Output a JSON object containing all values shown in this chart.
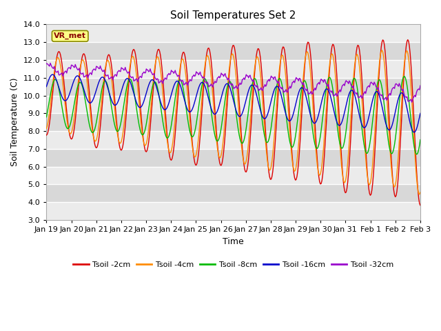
{
  "title": "Soil Temperatures Set 2",
  "xlabel": "Time",
  "ylabel": "Soil Temperature (C)",
  "ylim": [
    3.0,
    14.0
  ],
  "yticks": [
    3.0,
    4.0,
    5.0,
    6.0,
    7.0,
    8.0,
    9.0,
    10.0,
    11.0,
    12.0,
    13.0,
    14.0
  ],
  "date_labels": [
    "Jan 19",
    "Jan 20",
    "Jan 21",
    "Jan 22",
    "Jan 23",
    "Jan 24",
    "Jan 25",
    "Jan 26",
    "Jan 27",
    "Jan 28",
    "Jan 29",
    "Jan 30",
    "Jan 31",
    "Feb 1",
    "Feb 2",
    "Feb 3"
  ],
  "series_colors": [
    "#dd0000",
    "#ff8c00",
    "#00bb00",
    "#0000cc",
    "#9900cc"
  ],
  "series_labels": [
    "Tsoil -2cm",
    "Tsoil -4cm",
    "Tsoil -8cm",
    "Tsoil -16cm",
    "Tsoil -32cm"
  ],
  "annotation_text": "VR_met",
  "background_color": "#ffffff",
  "plot_bg_dark": "#d8d8d8",
  "plot_bg_light": "#ebebeb",
  "grid_color": "#ffffff",
  "title_fontsize": 11,
  "n_points": 480
}
